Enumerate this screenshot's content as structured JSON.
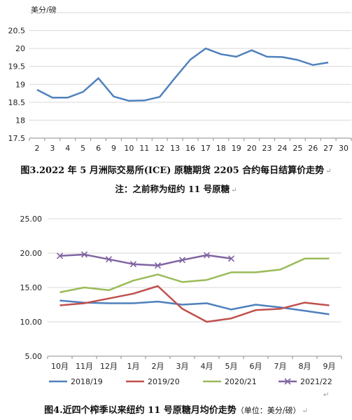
{
  "chart_data": [
    {
      "type": "line",
      "ylabel": "美分/磅",
      "xlabel": "",
      "categories": [
        "2",
        "3",
        "4",
        "5",
        "6",
        "9",
        "10",
        "11",
        "12",
        "13",
        "16",
        "17",
        "18",
        "19",
        "20",
        "23",
        "24",
        "25",
        "26",
        "27",
        "30"
      ],
      "series": [
        {
          "values": [
            18.85,
            18.63,
            18.63,
            18.79,
            19.17,
            18.66,
            18.54,
            18.55,
            18.65,
            19.18,
            19.69,
            20.0,
            19.84,
            19.77,
            19.95,
            19.77,
            19.76,
            19.68,
            19.54,
            19.61,
            null
          ]
        }
      ],
      "ylim": [
        17.5,
        21
      ],
      "yticks": [
        17.5,
        18,
        18.5,
        19,
        19.5,
        20,
        20.5,
        21
      ],
      "grid": "horizontal",
      "colors": [
        "#4f81bd"
      ]
    },
    {
      "type": "line",
      "categories": [
        "10月",
        "11月",
        "12月",
        "1月",
        "2月",
        "3月",
        "4月",
        "5月",
        "6月",
        "7月",
        "8月",
        "9月"
      ],
      "series": [
        {
          "name": "2018/19",
          "values": [
            13.1,
            12.8,
            12.7,
            12.7,
            12.95,
            12.5,
            12.7,
            11.8,
            12.5,
            12.1,
            11.6,
            11.1
          ]
        },
        {
          "name": "2019/20",
          "values": [
            12.4,
            12.7,
            13.4,
            14.1,
            15.2,
            11.9,
            10.0,
            10.5,
            11.7,
            11.9,
            12.8,
            12.4
          ]
        },
        {
          "name": "2020/21",
          "values": [
            14.3,
            15.0,
            14.6,
            16.0,
            16.9,
            15.8,
            16.1,
            17.2,
            17.2,
            17.6,
            19.2,
            19.2
          ]
        },
        {
          "name": "2021/22",
          "values": [
            19.6,
            19.8,
            19.1,
            18.4,
            18.2,
            19.0,
            19.7,
            19.2,
            null,
            null,
            null,
            null
          ]
        }
      ],
      "ylim": [
        5,
        25
      ],
      "yticks": [
        "5.00",
        "10.00",
        "15.00",
        "20.00",
        "25.00"
      ],
      "grid": "horizontal",
      "legend": "bottom",
      "colors": [
        "#4f81bd",
        "#c0504d",
        "#9bbb59",
        "#8064a2"
      ]
    }
  ],
  "captions": {
    "fig3_title": "图3.2022 年 5 月洲际交易所(ICE) 原糖期货 2205 合约每日结算价走势",
    "fig3_note": "注：之前称为纽约 11 号原糖",
    "fig4_title": "图4.近四个榨季以来纽约 11 号原糖月均价走势",
    "fig4_unit": "（单位：美分/磅）",
    "return_mark": "↵"
  }
}
